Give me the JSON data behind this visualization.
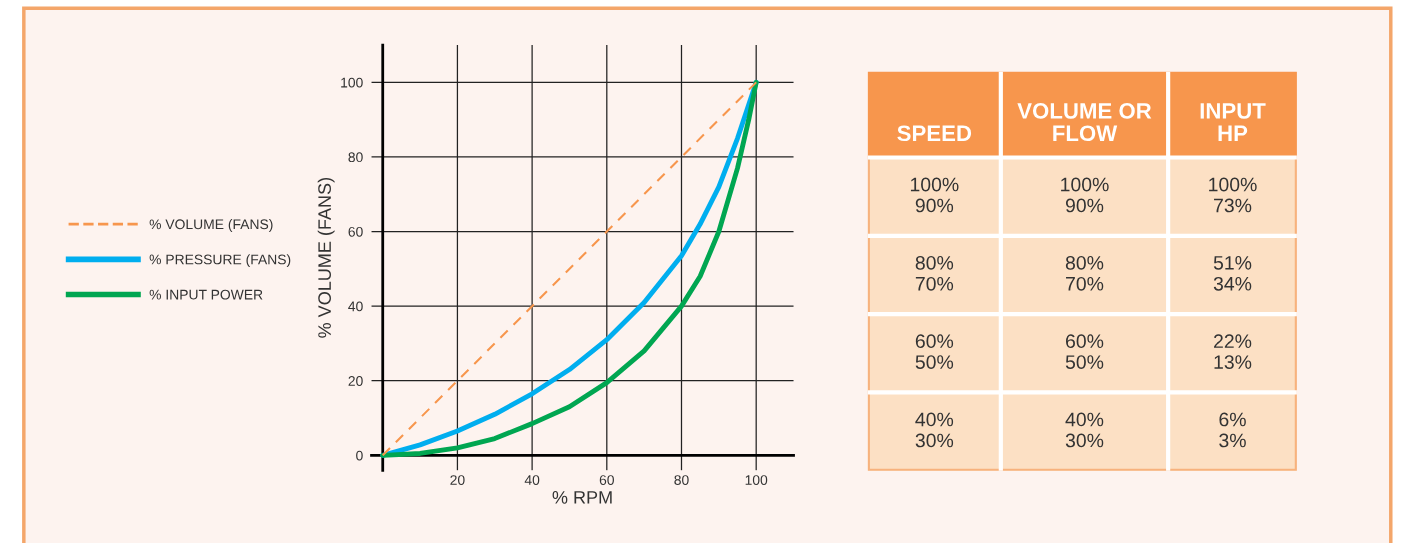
{
  "chart_data": [
    {
      "type": "line",
      "xlabel": "% RPM",
      "ylabel": "% VOLUME (FANS)",
      "xlim": [
        -3,
        110
      ],
      "ylim": [
        -4,
        110
      ],
      "xticks": [
        20,
        40,
        60,
        80,
        100
      ],
      "yticks": [
        {
          "value": 0,
          "label": "0"
        },
        20,
        40,
        60,
        80,
        100
      ],
      "grid": true,
      "legend": "left",
      "series": [
        {
          "name": "% VOLUME (FANS)",
          "color": "#f7964d",
          "line_style": "dashed",
          "x": [
            0,
            100
          ],
          "values": [
            0,
            100
          ]
        },
        {
          "name": "% PRESSURE (FANS)",
          "color": "#00aeef",
          "line_style": "solid",
          "x": [
            0,
            10,
            20,
            30,
            40,
            50,
            60,
            70,
            80,
            85,
            90,
            95,
            100
          ],
          "values": [
            0,
            2.8,
            6.5,
            11,
            16.5,
            23,
            31,
            41,
            53.5,
            62,
            72,
            85,
            100
          ]
        },
        {
          "name": "% INPUT POWER",
          "color": "#00a651",
          "line_style": "solid",
          "x": [
            0,
            10,
            20,
            30,
            40,
            50,
            60,
            70,
            80,
            85,
            90,
            95,
            98,
            100
          ],
          "values": [
            0,
            0.5,
            2,
            4.5,
            8.5,
            13,
            19.5,
            28,
            40,
            48,
            60,
            77,
            90,
            100
          ]
        }
      ]
    },
    {
      "type": "other",
      "categories": [
        "SPEED",
        "VOLUME OR\nFLOW",
        "INPUT\nHP"
      ],
      "cell_labels": [
        [
          "100%\n90%",
          "100%\n90%",
          "100%\n73%"
        ],
        [
          "80%\n70%",
          "80%\n70%",
          "51%\n34%"
        ],
        [
          "60%\n50%",
          "60%\n50%",
          "22%\n13%"
        ],
        [
          "40%\n30%",
          "40%\n30%",
          "6%\n3%"
        ]
      ]
    }
  ]
}
